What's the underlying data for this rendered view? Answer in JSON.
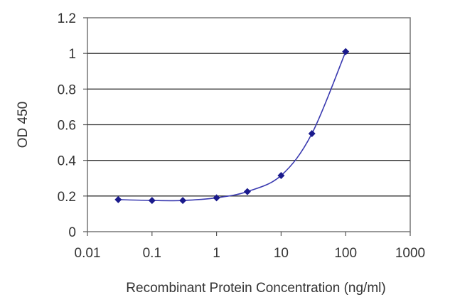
{
  "chart_data": {
    "type": "scatter",
    "title": "",
    "xlabel": "Recombinant Protein Concentration (ng/ml)",
    "ylabel": "OD 450",
    "x_scale": "log",
    "xlim": [
      0.01,
      1000
    ],
    "ylim": [
      0,
      1.2
    ],
    "x_ticks": [
      "0.01",
      "0.1",
      "1",
      "10",
      "100",
      "1000"
    ],
    "y_ticks": [
      "0",
      "0.2",
      "0.4",
      "0.6",
      "0.8",
      "1",
      "1.2"
    ],
    "grid": "horizontal",
    "legend": "none",
    "series": [
      {
        "x": [
          0.03,
          0.1,
          0.3,
          1,
          3,
          10,
          30,
          100
        ],
        "y": [
          0.18,
          0.175,
          0.175,
          0.19,
          0.225,
          0.315,
          0.55,
          1.01
        ],
        "color": "#1a1a8c",
        "fit_line": true
      }
    ]
  }
}
